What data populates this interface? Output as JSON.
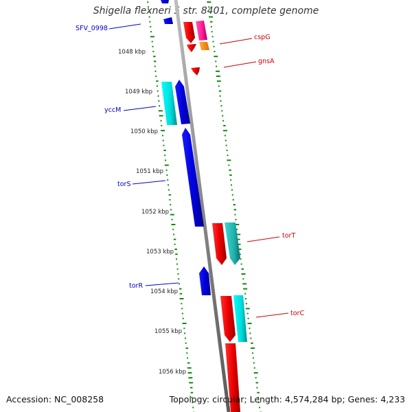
{
  "title": "Shigella flexneri 5 str. 8401, complete genome",
  "footer": {
    "accession": "Accession: NC_008258",
    "summary": "Topology: circular; Length: 4,574,284 bp; Genes: 4,233"
  },
  "ticks": [
    "1048 kbp",
    "1049 kbp",
    "1050 kbp",
    "1051 kbp",
    "1052 kbp",
    "1053 kbp",
    "1054 kbp",
    "1055 kbp",
    "1056 kbp"
  ],
  "gene_labels": {
    "left": [
      "SFV_0998",
      "yccM",
      "torS",
      "torR"
    ],
    "right": [
      "cspG",
      "gnsA",
      "torT",
      "torC"
    ]
  },
  "colors": {
    "reverse_strand_gene": "#0000ee",
    "forward_strand_gene": "#ee0000",
    "cds": "#00e5e5",
    "cds_alt": "#ff1493",
    "other": "#ff8c00",
    "backbone": "#888888",
    "gc_ticks": "#118811",
    "left_label": "#0000cc",
    "right_label": "#cc0000"
  }
}
